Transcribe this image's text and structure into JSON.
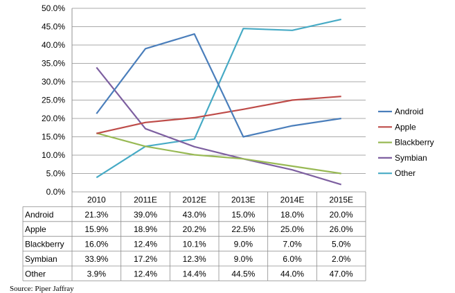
{
  "chart_data": {
    "type": "line",
    "categories": [
      "2010",
      "2011E",
      "2012E",
      "2013E",
      "2014E",
      "2015E"
    ],
    "series": [
      {
        "name": "Android",
        "color": "#4A7EBB",
        "values": [
          21.3,
          39.0,
          43.0,
          15.0,
          18.0,
          20.0
        ],
        "labels": [
          "21.3%",
          "39.0%",
          "43.0%",
          "15.0%",
          "18.0%",
          "20.0%"
        ]
      },
      {
        "name": "Apple",
        "color": "#BE4B48",
        "values": [
          15.9,
          18.9,
          20.2,
          22.5,
          25.0,
          26.0
        ],
        "labels": [
          "15.9%",
          "18.9%",
          "20.2%",
          "22.5%",
          "25.0%",
          "26.0%"
        ]
      },
      {
        "name": "Blackberry",
        "color": "#98B954",
        "values": [
          16.0,
          12.4,
          10.1,
          9.0,
          7.0,
          5.0
        ],
        "labels": [
          "16.0%",
          "12.4%",
          "10.1%",
          "9.0%",
          "7.0%",
          "5.0%"
        ]
      },
      {
        "name": "Symbian",
        "color": "#7D5FA0",
        "values": [
          33.9,
          17.2,
          12.3,
          9.0,
          6.0,
          2.0
        ],
        "labels": [
          "33.9%",
          "17.2%",
          "12.3%",
          "9.0%",
          "6.0%",
          "2.0%"
        ]
      },
      {
        "name": "Other",
        "color": "#46AAC5",
        "values": [
          3.9,
          12.4,
          14.4,
          44.5,
          44.0,
          47.0
        ],
        "labels": [
          "3.9%",
          "12.4%",
          "14.4%",
          "44.5%",
          "44.0%",
          "47.0%"
        ]
      }
    ],
    "ylim": [
      0,
      50
    ],
    "y_ticks": [
      "0.0%",
      "5.0%",
      "10.0%",
      "15.0%",
      "20.0%",
      "25.0%",
      "30.0%",
      "35.0%",
      "40.0%",
      "45.0%",
      "50.0%"
    ],
    "grid": "horizontal",
    "legend_position": "right",
    "data_table": true
  },
  "source_text": "Source: Piper Jaffray"
}
